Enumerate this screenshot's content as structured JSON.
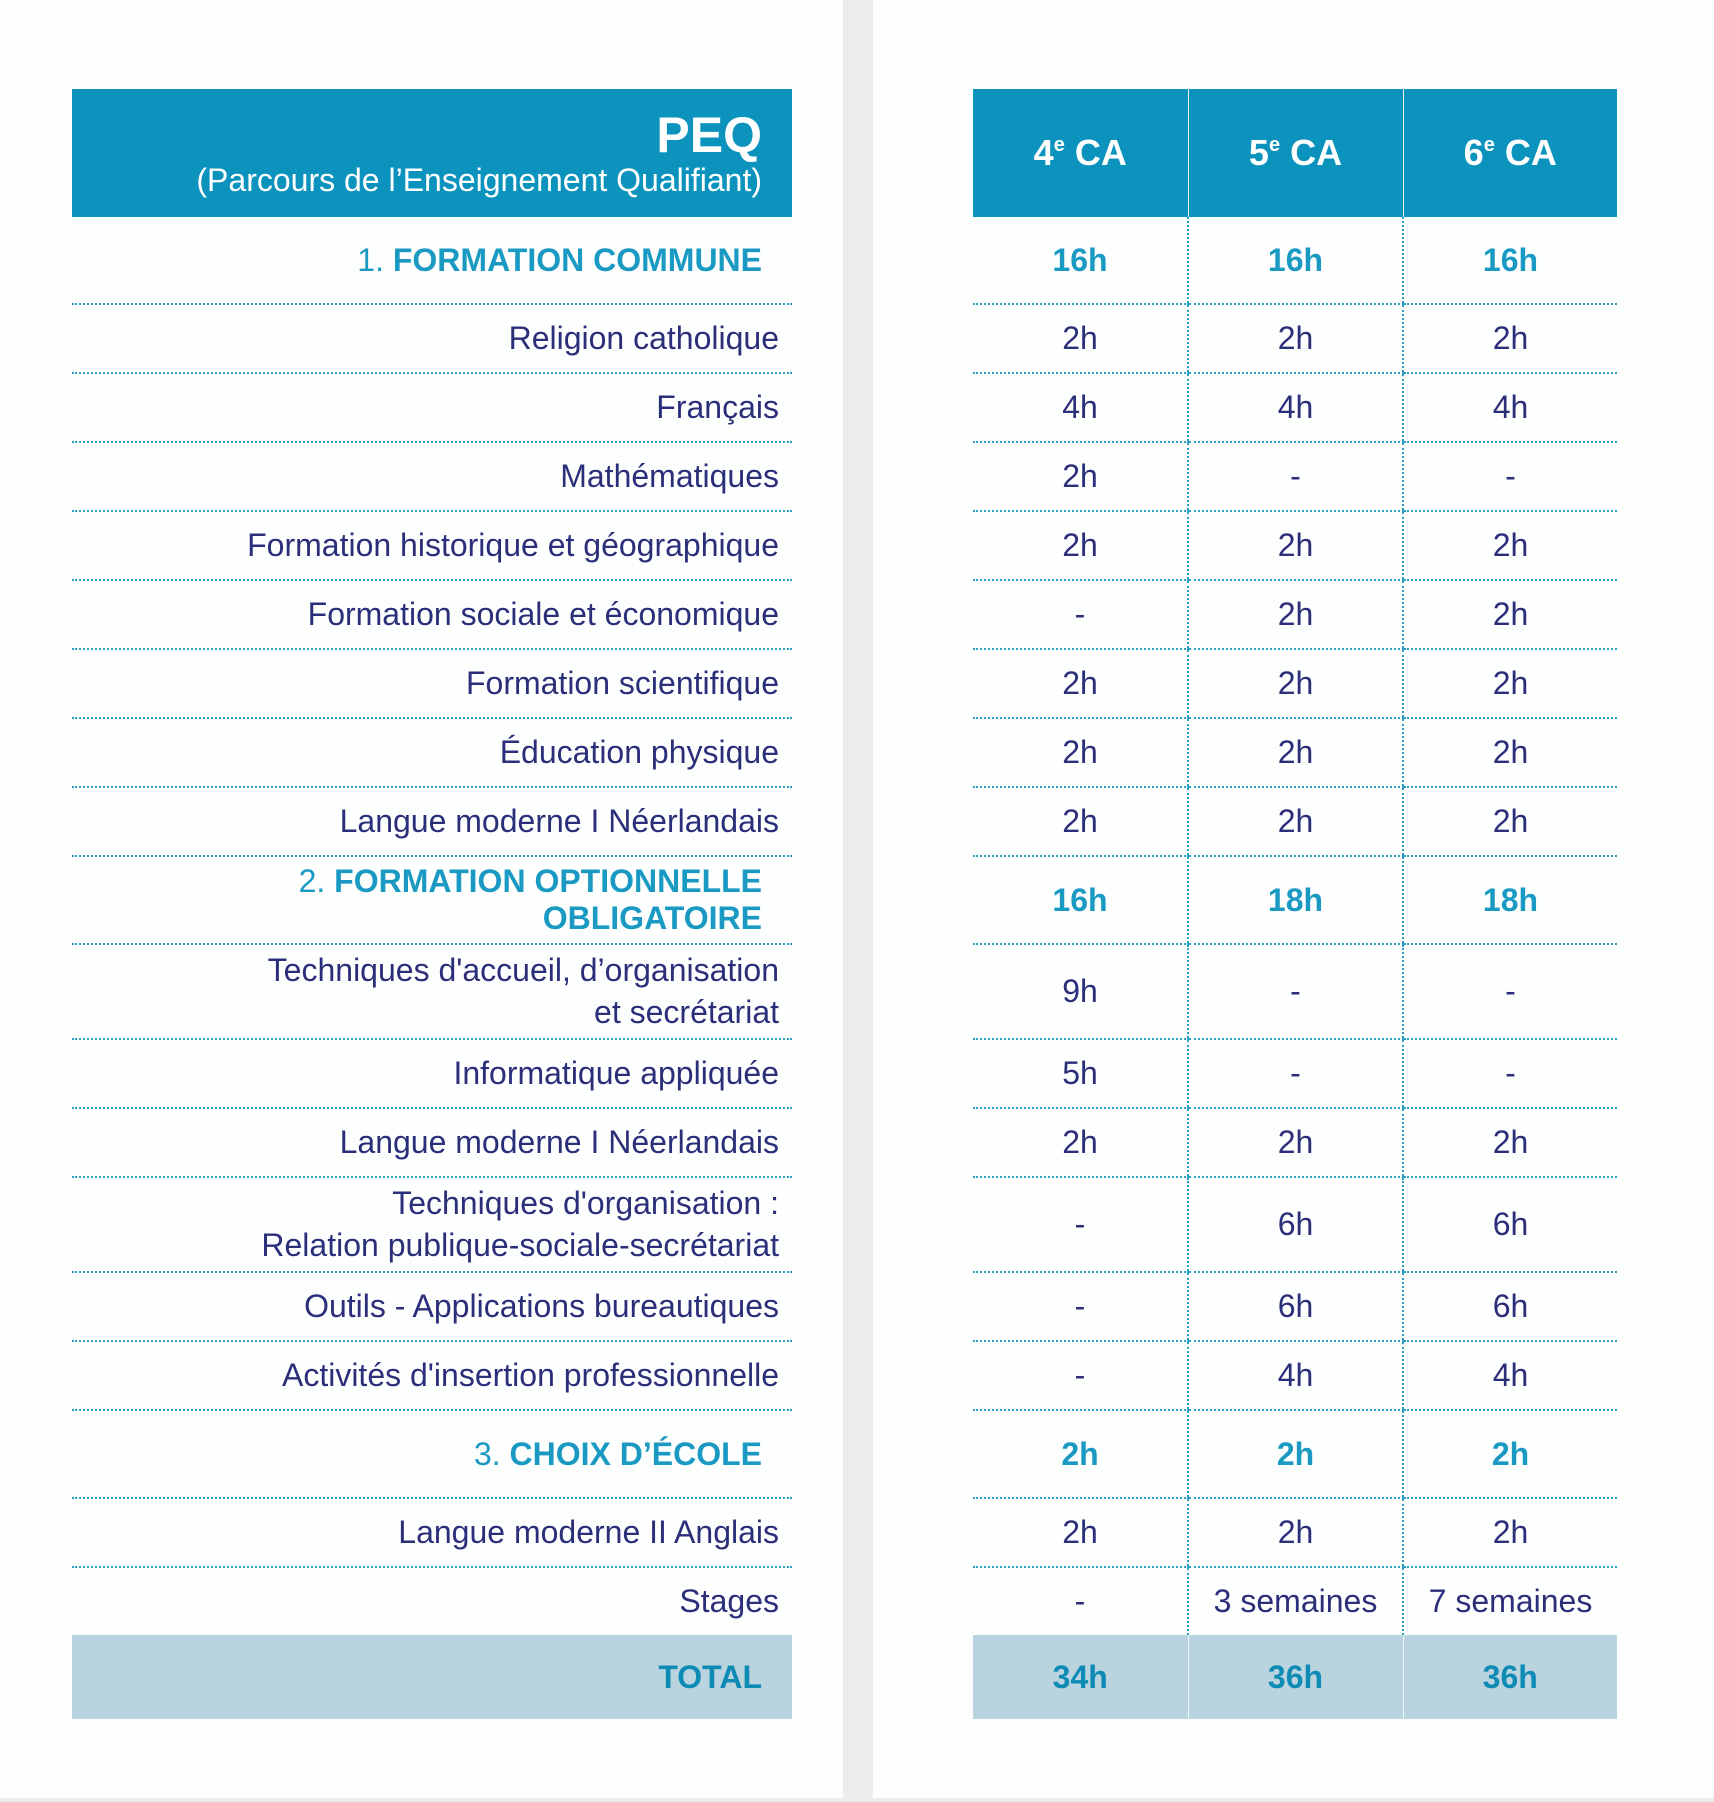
{
  "header": {
    "title": "PEQ",
    "subtitle": "(Parcours de l’Enseignement Qualifiant)",
    "columns": [
      {
        "num": "4",
        "sup": "e",
        "suffix": " CA"
      },
      {
        "num": "5",
        "sup": "e",
        "suffix": " CA"
      },
      {
        "num": "6",
        "sup": "e",
        "suffix": " CA"
      }
    ]
  },
  "sections": [
    {
      "num": "1.",
      "title": "FORMATION COMMUNE",
      "hours": [
        "16h",
        "16h",
        "16h"
      ],
      "rows": [
        {
          "label": "Religion catholique",
          "values": [
            "2h",
            "2h",
            "2h"
          ]
        },
        {
          "label": "Français",
          "values": [
            "4h",
            "4h",
            "4h"
          ]
        },
        {
          "label": "Mathématiques",
          "values": [
            "2h",
            "-",
            "-"
          ]
        },
        {
          "label": "Formation historique et géographique",
          "values": [
            "2h",
            "2h",
            "2h"
          ]
        },
        {
          "label": "Formation sociale et économique",
          "values": [
            "-",
            "2h",
            "2h"
          ]
        },
        {
          "label": "Formation scientifique",
          "values": [
            "2h",
            "2h",
            "2h"
          ]
        },
        {
          "label": "Éducation physique",
          "values": [
            "2h",
            "2h",
            "2h"
          ]
        },
        {
          "label": "Langue moderne I Néerlandais",
          "values": [
            "2h",
            "2h",
            "2h"
          ]
        }
      ]
    },
    {
      "num": "2.",
      "title": "FORMATION OPTIONNELLE OBLIGATOIRE",
      "hours": [
        "16h",
        "18h",
        "18h"
      ],
      "rows": [
        {
          "label": "Techniques d'accueil, d’organisation",
          "label2": "et secrétariat",
          "values": [
            "9h",
            "-",
            "-"
          ]
        },
        {
          "label": "Informatique appliquée",
          "values": [
            "5h",
            "-",
            "-"
          ]
        },
        {
          "label": "Langue moderne I Néerlandais",
          "values": [
            "2h",
            "2h",
            "2h"
          ]
        },
        {
          "label": "Techniques d'organisation :",
          "label2": "Relation publique-sociale-secrétariat",
          "values": [
            "-",
            "6h",
            "6h"
          ]
        },
        {
          "label": "Outils - Applications bureautiques",
          "values": [
            "-",
            "6h",
            "6h"
          ]
        },
        {
          "label": "Activités d'insertion professionnelle",
          "values": [
            "-",
            "4h",
            "4h"
          ]
        }
      ]
    },
    {
      "num": "3.",
      "title": "CHOIX D’ÉCOLE",
      "hours": [
        "2h",
        "2h",
        "2h"
      ],
      "rows": [
        {
          "label": "Langue moderne II Anglais",
          "values": [
            "2h",
            "2h",
            "2h"
          ]
        },
        {
          "label": "Stages",
          "values": [
            "-",
            "3 semaines",
            "7 semaines"
          ]
        }
      ]
    }
  ],
  "total": {
    "label": "TOTAL",
    "values": [
      "34h",
      "36h",
      "36h"
    ]
  },
  "colors": {
    "header_bg": "#0b93be",
    "section_text": "#1a9ac3",
    "body_text": "#2b2f7a",
    "total_bg": "#b9d3df",
    "total_text": "#0e8bb5",
    "separator": "#2b9fc4"
  }
}
